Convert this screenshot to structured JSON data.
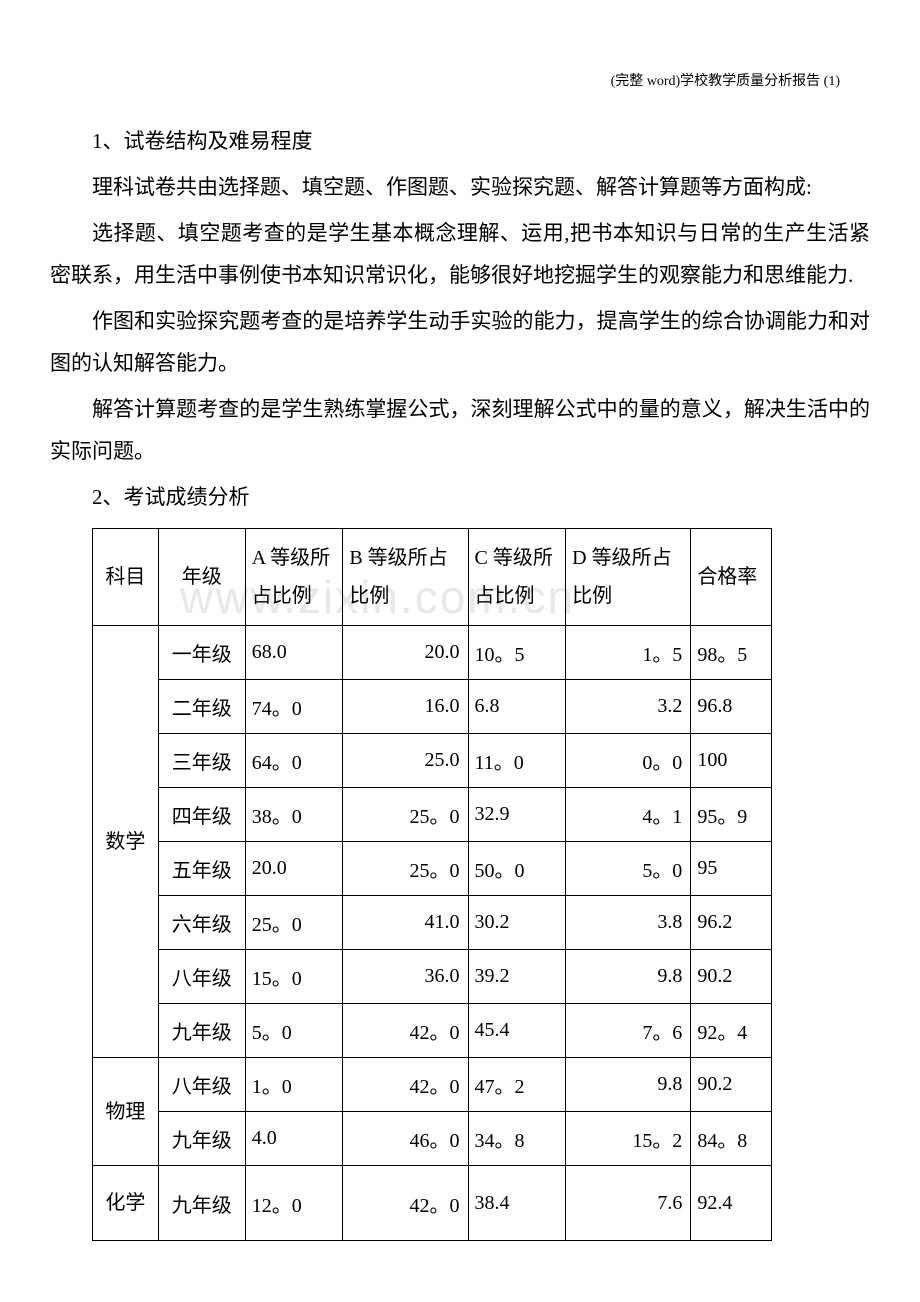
{
  "header": "(完整 word)学校教学质量分析报告 (1)",
  "sections": {
    "s1_title": "1、试卷结构及难易程度",
    "s1_p1": "理科试卷共由选择题、填空题、作图题、实验探究题、解答计算题等方面构成:",
    "s1_p2": "选择题、填空题考查的是学生基本概念理解、运用,把书本知识与日常的生产生活紧密联系，用生活中事例使书本知识常识化，能够很好地挖掘学生的观察能力和思维能力.",
    "s1_p3": "作图和实验探究题考查的是培养学生动手实验的能力，提高学生的综合协调能力和对图的认知解答能力。",
    "s1_p4": "解答计算题考查的是学生熟练掌握公式，深刻理解公式中的量的意义，解决生活中的实际问题。",
    "s2_title": "2、考试成绩分析"
  },
  "watermark": "www.zixin.com.cn",
  "table": {
    "headers": {
      "subject": "科目",
      "grade": "年级",
      "gradeA": "A 等级所占比例",
      "gradeB": "B 等级所占比例",
      "gradeC": "C 等级所占比例",
      "gradeD": "D 等级所占比例",
      "pass": "合格率"
    },
    "subjects": {
      "math": "数学",
      "physics": "物理",
      "chemistry": "化学"
    },
    "rows": [
      {
        "grade": "一年级",
        "a": "68.0",
        "b": "20.0",
        "c": "10。5",
        "d": "1。5",
        "pass": "98。5"
      },
      {
        "grade": "二年级",
        "a": "74。0",
        "b": "16.0",
        "c": "6.8",
        "d": "3.2",
        "pass": "96.8"
      },
      {
        "grade": "三年级",
        "a": "64。0",
        "b": "25.0",
        "c": "11。0",
        "d": "0。0",
        "pass": "100"
      },
      {
        "grade": "四年级",
        "a": "38。0",
        "b": "25。0",
        "c": "32.9",
        "d": "4。1",
        "pass": "95。9"
      },
      {
        "grade": "五年级",
        "a": "20.0",
        "b": "25。0",
        "c": "50。0",
        "d": "5。0",
        "pass": "95"
      },
      {
        "grade": "六年级",
        "a": "25。0",
        "b": "41.0",
        "c": "30.2",
        "d": "3.8",
        "pass": "96.2"
      },
      {
        "grade": "八年级",
        "a": "15。0",
        "b": "36.0",
        "c": "39.2",
        "d": "9.8",
        "pass": "90.2"
      },
      {
        "grade": "九年级",
        "a": "5。0",
        "b": "42。0",
        "c": "45.4",
        "d": "7。6",
        "pass": "92。4"
      },
      {
        "grade": "八年级",
        "a": "1。0",
        "b": "42。0",
        "c": "47。2",
        "d": "9.8",
        "pass": "90.2"
      },
      {
        "grade": "九年级",
        "a": "4.0",
        "b": "46。0",
        "c": "34。8",
        "d": "15。2",
        "pass": "84。8"
      },
      {
        "grade": "九年级",
        "a": "12。0",
        "b": "42。0",
        "c": "38.4",
        "d": "7.6",
        "pass": "92.4"
      }
    ]
  }
}
